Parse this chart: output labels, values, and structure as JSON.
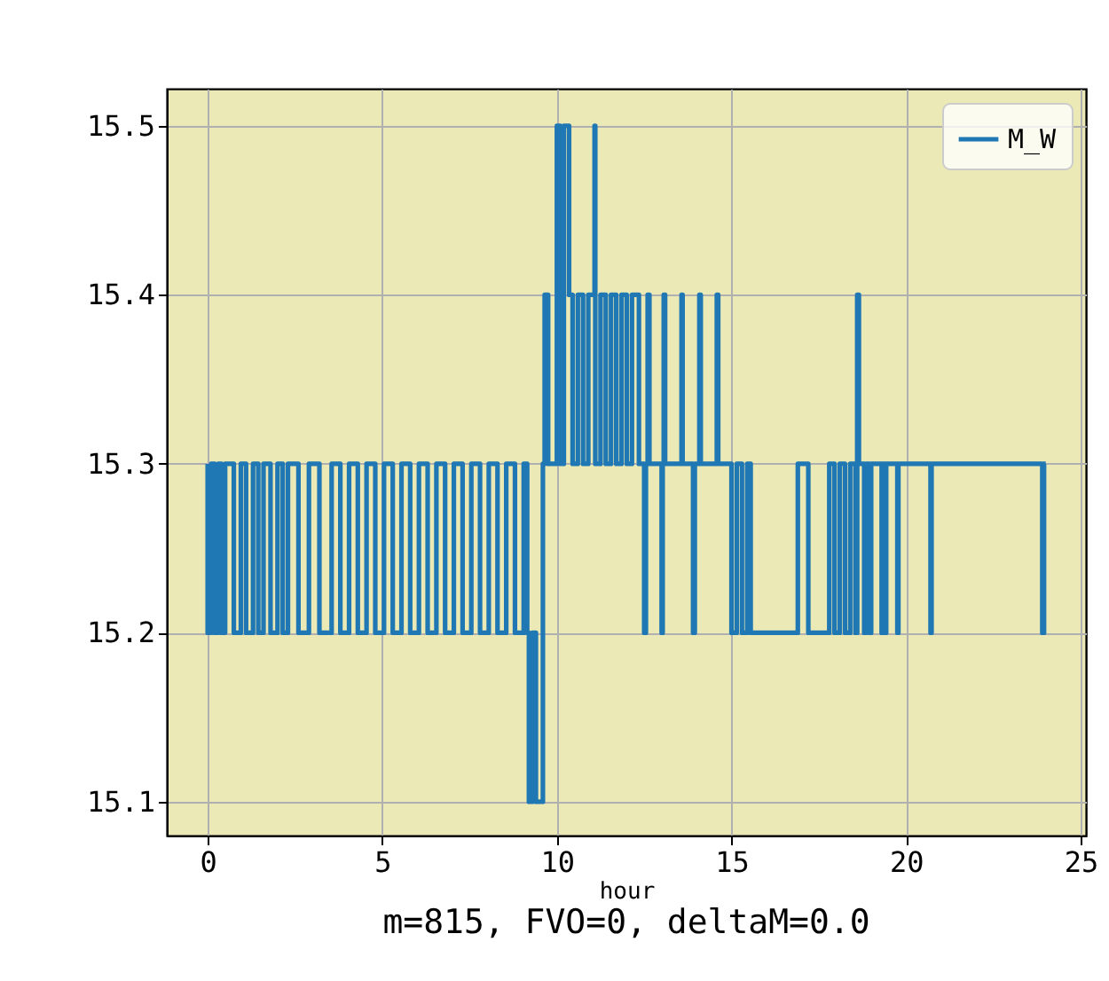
{
  "chart_data": {
    "type": "line",
    "xlabel": "hour",
    "annotations": [
      "m=815, FVO=0, deltaM=0.0"
    ],
    "x": [
      0,
      0,
      0.1,
      0.1,
      0.2,
      0.2,
      0.3,
      0.3,
      0.4,
      0.4,
      0.5,
      0.5,
      0.75,
      0.75,
      0.95,
      0.95,
      1.1,
      1.1,
      1.3,
      1.3,
      1.45,
      1.45,
      1.6,
      1.6,
      1.8,
      1.8,
      2.0,
      2.0,
      2.15,
      2.15,
      2.3,
      2.3,
      2.6,
      2.6,
      2.9,
      2.9,
      3.2,
      3.2,
      3.55,
      3.55,
      3.8,
      3.8,
      4.05,
      4.05,
      4.3,
      4.3,
      4.55,
      4.55,
      4.8,
      4.8,
      5.05,
      5.05,
      5.3,
      5.3,
      5.55,
      5.55,
      5.8,
      5.8,
      6.05,
      6.05,
      6.3,
      6.3,
      6.55,
      6.55,
      6.8,
      6.8,
      7.05,
      7.05,
      7.3,
      7.3,
      7.55,
      7.55,
      7.8,
      7.8,
      8.05,
      8.05,
      8.3,
      8.3,
      8.55,
      8.55,
      8.8,
      8.8,
      9.05,
      9.05,
      9.15,
      9.15,
      9.2,
      9.2,
      9.3,
      9.3,
      9.4,
      9.4,
      9.6,
      9.6,
      9.65,
      9.65,
      9.75,
      9.75,
      10.0,
      10.0,
      10.1,
      10.1,
      10.2,
      10.2,
      10.35,
      10.35,
      10.45,
      10.45,
      10.6,
      10.6,
      10.75,
      10.75,
      10.9,
      10.9,
      11.08,
      11.08,
      11.1,
      11.1,
      11.25,
      11.25,
      11.4,
      11.4,
      11.55,
      11.55,
      11.7,
      11.7,
      11.85,
      11.85,
      12.0,
      12.0,
      12.15,
      12.15,
      12.35,
      12.35,
      12.5,
      12.5,
      12.55,
      12.55,
      12.6,
      12.6,
      12.65,
      12.65,
      13.0,
      13.0,
      13.03,
      13.03,
      13.06,
      13.06,
      13.1,
      13.1,
      13.57,
      13.57,
      13.6,
      13.6,
      13.9,
      13.9,
      13.95,
      13.95,
      14.08,
      14.08,
      14.12,
      14.12,
      14.58,
      14.58,
      14.62,
      14.62,
      15.0,
      15.0,
      15.15,
      15.15,
      15.3,
      15.3,
      15.45,
      15.45,
      15.55,
      15.55,
      16.9,
      16.9,
      17.2,
      17.2,
      17.8,
      17.8,
      17.95,
      17.95,
      18.1,
      18.1,
      18.25,
      18.25,
      18.4,
      18.4,
      18.55,
      18.55,
      18.6,
      18.6,
      18.65,
      18.65,
      18.8,
      18.8,
      18.85,
      18.85,
      18.95,
      18.95,
      19.0,
      19.0,
      19.3,
      19.3,
      19.33,
      19.33,
      19.4,
      19.4,
      19.43,
      19.43,
      19.75,
      19.75,
      19.78,
      19.78,
      20.7,
      20.7,
      20.73,
      20.73,
      23.9,
      23.9,
      23.95,
      23.95,
      24.0
    ],
    "series": [
      {
        "name": "M_W",
        "color": "#1f77b4",
        "values": [
          15.3,
          15.2,
          15.2,
          15.3,
          15.3,
          15.2,
          15.2,
          15.3,
          15.3,
          15.2,
          15.2,
          15.3,
          15.3,
          15.2,
          15.2,
          15.3,
          15.3,
          15.2,
          15.2,
          15.3,
          15.3,
          15.2,
          15.2,
          15.3,
          15.3,
          15.2,
          15.2,
          15.3,
          15.3,
          15.2,
          15.2,
          15.3,
          15.3,
          15.2,
          15.2,
          15.3,
          15.3,
          15.2,
          15.2,
          15.3,
          15.3,
          15.2,
          15.2,
          15.3,
          15.3,
          15.2,
          15.2,
          15.3,
          15.3,
          15.2,
          15.2,
          15.3,
          15.3,
          15.2,
          15.2,
          15.3,
          15.3,
          15.2,
          15.2,
          15.3,
          15.3,
          15.2,
          15.2,
          15.3,
          15.3,
          15.2,
          15.2,
          15.3,
          15.3,
          15.2,
          15.2,
          15.3,
          15.3,
          15.2,
          15.2,
          15.3,
          15.3,
          15.2,
          15.2,
          15.3,
          15.3,
          15.2,
          15.2,
          15.3,
          15.3,
          15.2,
          15.2,
          15.1,
          15.1,
          15.2,
          15.2,
          15.1,
          15.1,
          15.3,
          15.3,
          15.4,
          15.4,
          15.3,
          15.3,
          15.5,
          15.5,
          15.3,
          15.3,
          15.5,
          15.5,
          15.4,
          15.4,
          15.3,
          15.3,
          15.4,
          15.4,
          15.3,
          15.3,
          15.4,
          15.4,
          15.5,
          15.5,
          15.3,
          15.3,
          15.4,
          15.4,
          15.3,
          15.3,
          15.4,
          15.4,
          15.3,
          15.3,
          15.4,
          15.4,
          15.3,
          15.3,
          15.4,
          15.4,
          15.3,
          15.3,
          15.2,
          15.2,
          15.3,
          15.3,
          15.4,
          15.4,
          15.3,
          15.3,
          15.2,
          15.2,
          15.3,
          15.3,
          15.4,
          15.4,
          15.3,
          15.3,
          15.4,
          15.4,
          15.3,
          15.3,
          15.2,
          15.2,
          15.3,
          15.3,
          15.4,
          15.4,
          15.3,
          15.3,
          15.4,
          15.4,
          15.3,
          15.3,
          15.2,
          15.2,
          15.3,
          15.3,
          15.2,
          15.2,
          15.3,
          15.3,
          15.2,
          15.2,
          15.3,
          15.3,
          15.2,
          15.2,
          15.3,
          15.3,
          15.2,
          15.2,
          15.3,
          15.3,
          15.2,
          15.2,
          15.3,
          15.3,
          15.2,
          15.2,
          15.4,
          15.4,
          15.3,
          15.3,
          15.2,
          15.2,
          15.3,
          15.3,
          15.2,
          15.2,
          15.3,
          15.3,
          15.2,
          15.2,
          15.3,
          15.3,
          15.2,
          15.2,
          15.3,
          15.3,
          15.2,
          15.2,
          15.3,
          15.3,
          15.2,
          15.2,
          15.3,
          15.3,
          15.2,
          15.2,
          15.3,
          15.3
        ]
      }
    ],
    "xlim": [
      -1.17,
      25.15
    ],
    "ylim": [
      15.08,
      15.522
    ],
    "xticks": [
      0,
      5,
      10,
      15,
      20,
      25
    ],
    "yticks": [
      15.1,
      15.2,
      15.3,
      15.4,
      15.5
    ],
    "grid": true,
    "legend": "top right"
  }
}
